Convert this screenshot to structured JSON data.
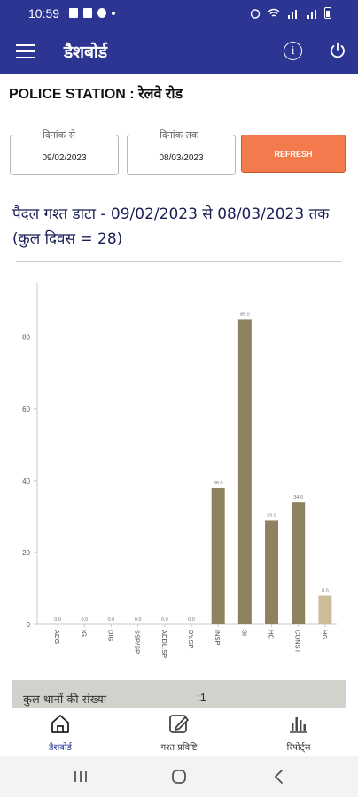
{
  "status_bar": {
    "time": "10:59"
  },
  "header": {
    "title": "डैशबोर्ड"
  },
  "station": {
    "label": "POLICE STATION : रेलवे रोड"
  },
  "filters": {
    "from_label": "दिनांक से",
    "from_value": "09/02/2023",
    "to_label": "दिनांक तक",
    "to_value": "08/03/2023",
    "refresh_label": "REFRESH"
  },
  "section": {
    "title": "पैदल गश्त डाटा - 09/02/2023 से 08/03/2023 तक (कुल दिवस = 28)"
  },
  "chart_data": {
    "type": "bar",
    "categories": [
      "ADG",
      "IG",
      "DIG",
      "SSP/SP",
      "ADDL.SP",
      "DY.SP",
      "INSP",
      "SI",
      "HC",
      "CONST",
      "HG"
    ],
    "values": [
      0,
      0,
      0,
      0,
      0,
      0,
      38,
      85,
      29,
      34,
      8
    ],
    "value_labels": [
      "0.0",
      "0.0",
      "0.0",
      "0.0",
      "0.0",
      "0.0",
      "38.0",
      "85.0",
      "29.0",
      "34.0",
      "8.0"
    ],
    "yticks": [
      "0",
      "20",
      "40",
      "60",
      "80"
    ],
    "ylim": [
      0,
      93
    ],
    "colors": [
      "#8e8160",
      "#8e8160",
      "#8e8160",
      "#8e8160",
      "#8e8160",
      "#8e8160",
      "#8e8160",
      "#8e8160",
      "#8e8160",
      "#8e8160",
      "#cbbd99"
    ],
    "grid": false
  },
  "summary": {
    "label": "कुल थानों की संख्या",
    "value": ":1"
  },
  "bottom_nav": [
    {
      "label": "डैशबोर्ड",
      "icon": "home-icon",
      "active": true
    },
    {
      "label": "गश्त प्रविष्टि",
      "icon": "edit-icon",
      "active": false
    },
    {
      "label": "रिपोर्ट्स",
      "icon": "bar-chart-icon",
      "active": false
    }
  ]
}
